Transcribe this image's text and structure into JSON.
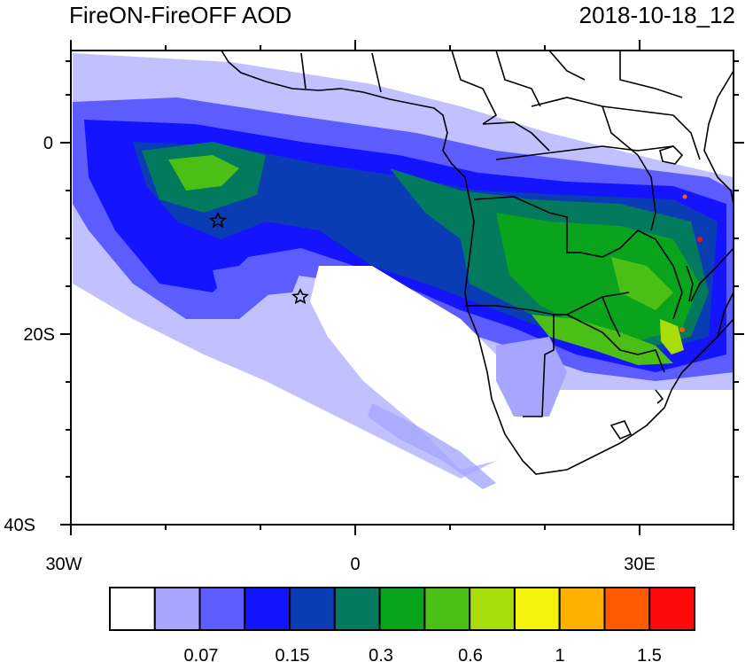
{
  "title_left": "FireON-FireOFF AOD",
  "title_right": "2018-10-18_12",
  "axes": {
    "lat_labels": [
      "0",
      "20S",
      "40S"
    ],
    "lon_labels": [
      "30W",
      "0",
      "30E"
    ]
  },
  "colorbar": {
    "labels": [
      "0.07",
      "0.15",
      "0.3",
      "0.6",
      "1",
      "1.5"
    ],
    "colors": [
      "#ffffff",
      "#a6a6ff",
      "#5c5cff",
      "#1414ff",
      "#0a3cb4",
      "#037a5e",
      "#0aa41c",
      "#4cbf16",
      "#a8dc0a",
      "#f2f20a",
      "#ffb000",
      "#ff5a00",
      "#ff0a0a"
    ]
  },
  "markers": [
    {
      "name": "star-marker-1",
      "lon": -14.5,
      "lat": -8
    },
    {
      "name": "star-marker-2",
      "lon": -5.5,
      "lat": -16
    }
  ]
}
